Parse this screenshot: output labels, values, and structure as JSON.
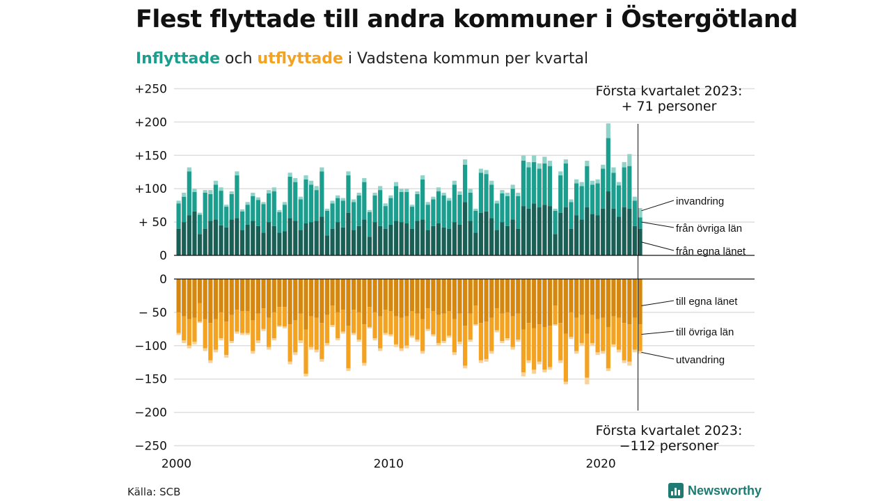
{
  "title": "Flest flyttade till andra kommuner i Östergötland",
  "subtitle": {
    "inflow_word": "Inflyttade",
    "connector": " och ",
    "outflow_word": "utflyttade",
    "rest": " i Vadstena kommun per kvartal"
  },
  "source": "Källa: SCB",
  "logo_text": "Newsworthy",
  "chart_data": {
    "type": "bar",
    "stacked": true,
    "x_start": "2000 Q1",
    "x_ticks": [
      "2000",
      "2010",
      "2020"
    ],
    "y_ticks_top": [
      "+250",
      "+200",
      "+150",
      "+100",
      "+ 50",
      "0"
    ],
    "y_ticks_bottom": [
      "0",
      "− 50",
      "−100",
      "−150",
      "−200",
      "−250"
    ],
    "ylim_top": [
      0,
      250
    ],
    "ylim_bottom": [
      -250,
      0
    ],
    "grid": true,
    "colors": {
      "in_egna": "#1a5f56",
      "in_ovriga": "#1b9e8e",
      "in_invandring": "#8fd3c9",
      "ut_egna": "#d5870f",
      "ut_ovriga": "#f3a222",
      "ut_utvandring": "#f8d29a"
    },
    "labels_inflow": [
      "invandring",
      "från övriga län",
      "från egna länet"
    ],
    "labels_outflow": [
      "till egna länet",
      "till övriga län",
      "utvandring"
    ],
    "annotation_top": [
      "Första kvartalet 2023:",
      "+ 71 personer"
    ],
    "annotation_bottom": [
      "Första kvartalet 2023:",
      "−112 personer"
    ],
    "inflow_totals": [
      82,
      94,
      132,
      100,
      64,
      98,
      98,
      112,
      102,
      76,
      96,
      126,
      69,
      80,
      94,
      87,
      80,
      98,
      102,
      68,
      80,
      124,
      116,
      88,
      120,
      112,
      104,
      132,
      70,
      82,
      90,
      86,
      126,
      84,
      94,
      116,
      68,
      94,
      104,
      78,
      90,
      110,
      100,
      100,
      76,
      96,
      120,
      80,
      88,
      102,
      94,
      86,
      112,
      96,
      144,
      100,
      70,
      130,
      128,
      112,
      82,
      98,
      94,
      106,
      94,
      150,
      140,
      150,
      138,
      148,
      142,
      70,
      126,
      144,
      84,
      114,
      110,
      142,
      112,
      114,
      136,
      198,
      132,
      110,
      140,
      152,
      88,
      71
    ],
    "inflow_egna": [
      40,
      50,
      60,
      66,
      32,
      40,
      52,
      54,
      45,
      42,
      54,
      56,
      38,
      46,
      52,
      44,
      34,
      50,
      44,
      34,
      36,
      56,
      52,
      38,
      48,
      50,
      52,
      58,
      30,
      40,
      50,
      42,
      64,
      38,
      44,
      54,
      28,
      50,
      44,
      40,
      46,
      52,
      50,
      48,
      40,
      52,
      54,
      38,
      44,
      48,
      42,
      40,
      50,
      46,
      80,
      52,
      34,
      64,
      66,
      56,
      38,
      50,
      44,
      54,
      40,
      74,
      70,
      78,
      72,
      76,
      74,
      32,
      64,
      72,
      40,
      60,
      54,
      72,
      62,
      60,
      70,
      96,
      70,
      58,
      72,
      70,
      44,
      40
    ],
    "inflow_invandring": [
      4,
      6,
      6,
      5,
      3,
      4,
      6,
      6,
      5,
      3,
      4,
      6,
      3,
      4,
      5,
      4,
      3,
      5,
      6,
      3,
      4,
      6,
      6,
      4,
      6,
      6,
      6,
      6,
      3,
      4,
      4,
      4,
      6,
      4,
      4,
      6,
      3,
      4,
      6,
      4,
      4,
      6,
      5,
      5,
      3,
      4,
      6,
      4,
      4,
      6,
      4,
      4,
      6,
      5,
      8,
      6,
      3,
      6,
      6,
      6,
      4,
      5,
      5,
      6,
      5,
      8,
      8,
      10,
      8,
      10,
      8,
      3,
      6,
      6,
      4,
      6,
      6,
      8,
      6,
      6,
      6,
      22,
      8,
      5,
      8,
      18,
      6,
      14
    ],
    "outflow_totals": [
      84,
      96,
      104,
      98,
      66,
      108,
      126,
      110,
      92,
      118,
      96,
      82,
      84,
      84,
      112,
      96,
      78,
      106,
      92,
      72,
      74,
      128,
      114,
      96,
      146,
      106,
      110,
      124,
      100,
      72,
      92,
      82,
      138,
      84,
      94,
      130,
      74,
      92,
      108,
      84,
      86,
      102,
      108,
      104,
      88,
      94,
      112,
      78,
      86,
      100,
      96,
      88,
      114,
      98,
      134,
      94,
      70,
      126,
      124,
      112,
      80,
      96,
      92,
      106,
      94,
      146,
      126,
      142,
      128,
      140,
      136,
      70,
      126,
      158,
      90,
      112,
      100,
      158,
      100,
      114,
      112,
      138,
      102,
      110,
      126,
      130,
      110,
      112
    ],
    "outflow_egna": [
      50,
      56,
      60,
      58,
      36,
      60,
      66,
      60,
      50,
      64,
      54,
      46,
      48,
      48,
      62,
      52,
      44,
      58,
      50,
      42,
      42,
      68,
      62,
      52,
      76,
      56,
      58,
      66,
      54,
      40,
      50,
      46,
      70,
      46,
      50,
      68,
      42,
      50,
      56,
      46,
      48,
      56,
      58,
      56,
      48,
      52,
      60,
      44,
      48,
      54,
      52,
      48,
      60,
      52,
      70,
      52,
      40,
      66,
      64,
      58,
      44,
      52,
      50,
      56,
      52,
      76,
      66,
      74,
      68,
      72,
      70,
      40,
      66,
      82,
      50,
      58,
      54,
      82,
      54,
      60,
      58,
      72,
      56,
      58,
      66,
      68,
      58,
      68
    ],
    "outflow_utvandring": [
      3,
      4,
      4,
      4,
      2,
      4,
      4,
      4,
      3,
      4,
      3,
      3,
      3,
      3,
      4,
      4,
      3,
      4,
      3,
      2,
      3,
      4,
      4,
      4,
      4,
      4,
      4,
      4,
      4,
      3,
      3,
      3,
      4,
      3,
      3,
      4,
      2,
      3,
      4,
      3,
      3,
      4,
      4,
      4,
      3,
      3,
      4,
      3,
      3,
      4,
      3,
      3,
      4,
      4,
      4,
      3,
      2,
      4,
      4,
      4,
      3,
      3,
      3,
      4,
      3,
      6,
      4,
      6,
      4,
      4,
      4,
      2,
      4,
      4,
      3,
      4,
      4,
      10,
      4,
      4,
      4,
      4,
      4,
      4,
      4,
      6,
      4,
      4
    ]
  }
}
